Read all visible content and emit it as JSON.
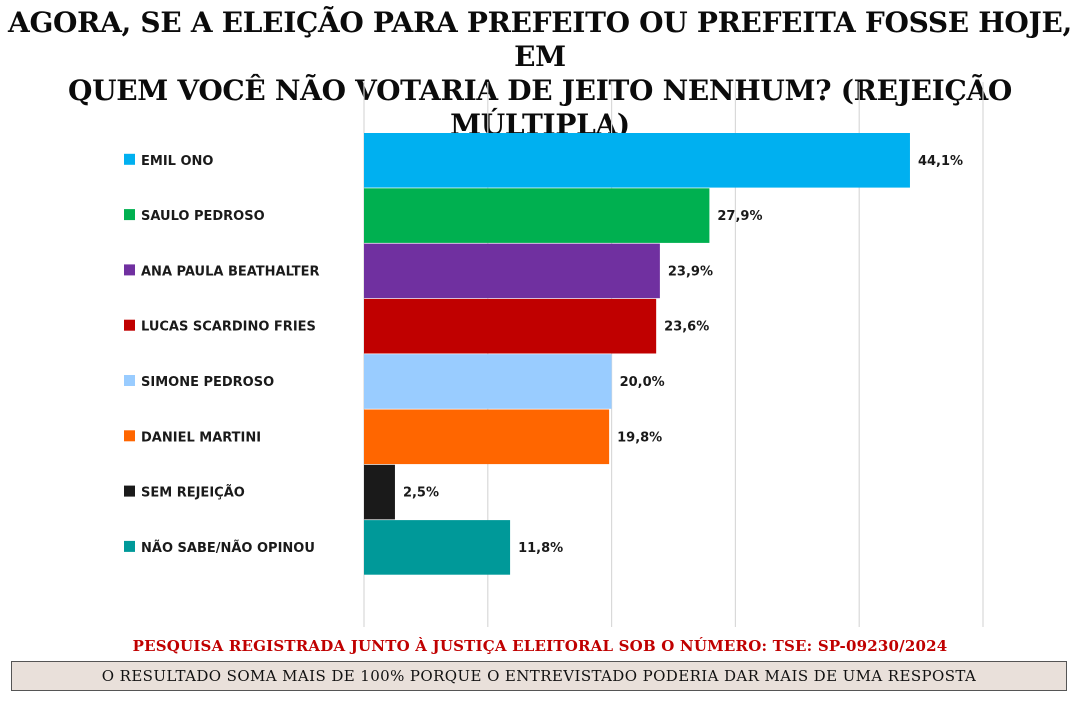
{
  "title_lines": [
    "AGORA, SE A ELEIÇÃO PARA PREFEITO OU PREFEITA FOSSE HOJE, EM",
    "QUEM VOCÊ NÃO VOTARIA DE JEITO NENHUM? (REJEIÇÃO MÚLTIPLA)"
  ],
  "chart_data": {
    "type": "bar",
    "orientation": "horizontal",
    "title": "AGORA, SE A ELEIÇÃO PARA PREFEITO OU PREFEITA FOSSE HOJE, EM QUEM VOCÊ NÃO VOTARIA DE JEITO NENHUM? (REJEIÇÃO MÚLTIPLA)",
    "categories": [
      "EMIL ONO",
      "SAULO PEDROSO",
      "ANA PAULA BEATHALTER",
      "LUCAS SCARDINO FRIES",
      "SIMONE PEDROSO",
      "DANIEL MARTINI",
      "SEM REJEIÇÃO",
      "NÃO SABE/NÃO OPINOU"
    ],
    "values": [
      44.1,
      27.9,
      23.9,
      23.6,
      20.0,
      19.8,
      2.5,
      11.8
    ],
    "value_labels": [
      "44,1%",
      "27,9%",
      "23,9%",
      "23,6%",
      "20,0%",
      "19,8%",
      "2,5%",
      "11,8%"
    ],
    "colors": [
      "#00b0f0",
      "#00b050",
      "#7030a0",
      "#c00000",
      "#99ccff",
      "#ff6600",
      "#1a1a1a",
      "#009999"
    ],
    "xlim": [
      0,
      50
    ],
    "grid": true,
    "legend": "left"
  },
  "footer": {
    "registro": "PESQUISA REGISTRADA JUNTO À JUSTIÇA ELEITORAL SOB O NÚMERO: TSE: SP-09230/2024",
    "nota": "O RESULTADO SOMA MAIS DE 100% PORQUE O ENTREVISTADO PODERIA DAR MAIS DE UMA RESPOSTA"
  }
}
